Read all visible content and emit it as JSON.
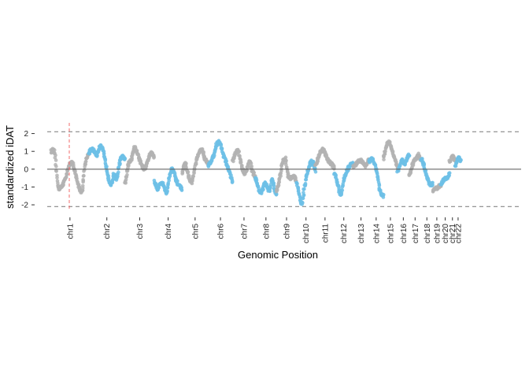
{
  "chart_data": {
    "type": "scatter",
    "xlabel": "Genomic Position",
    "ylabel": "standardized iDAT",
    "ylim": [
      -2.35,
      2.6
    ],
    "y_ticks": [
      -2,
      -1,
      0,
      1,
      2
    ],
    "threshold_lines": [
      2.1,
      -2.1
    ],
    "reference_line": 0,
    "highlight_position": 0.04,
    "grid": false,
    "colors": {
      "odd_chromosome": "#b3b3b3",
      "even_chromosome": "#6dc0e6",
      "threshold": "#888888",
      "reference": "#555555",
      "highlight": "#f26b6b"
    },
    "chromosomes": [
      {
        "name": "chr1",
        "start": 0.0,
        "end": 0.083,
        "profile": [
          1.0,
          0.9,
          -0.9,
          -1.0,
          -0.6,
          0.0,
          0.4,
          -0.2,
          -0.9,
          -1.2,
          0.3,
          0.9
        ]
      },
      {
        "name": "chr2",
        "start": 0.083,
        "end": 0.163,
        "profile": [
          0.9,
          1.1,
          1.0,
          0.8,
          1.3,
          1.1,
          0.4,
          -0.4,
          -0.9,
          -0.3,
          -0.5,
          0.3,
          0.7,
          0.5
        ]
      },
      {
        "name": "chr3",
        "start": 0.163,
        "end": 0.228,
        "profile": [
          -0.8,
          0.2,
          0.6,
          1.2,
          0.8,
          0.3,
          0.0,
          0.5,
          0.9,
          0.7
        ]
      },
      {
        "name": "chr4",
        "start": 0.228,
        "end": 0.289,
        "profile": [
          -0.7,
          -1.1,
          -0.8,
          -0.9,
          -1.3,
          -0.4,
          0.0,
          -0.6,
          -0.9,
          -1.1
        ]
      },
      {
        "name": "chr5",
        "start": 0.289,
        "end": 0.347,
        "profile": [
          -0.2,
          0.3,
          -0.4,
          -0.7,
          0.2,
          0.8,
          1.1,
          0.6,
          0.3
        ]
      },
      {
        "name": "chr6",
        "start": 0.347,
        "end": 0.401,
        "profile": [
          0.2,
          0.5,
          0.9,
          1.5,
          1.4,
          0.8,
          0.3,
          -0.2,
          -0.7
        ]
      },
      {
        "name": "chr7",
        "start": 0.401,
        "end": 0.451,
        "profile": [
          0.5,
          0.9,
          1.0,
          0.3,
          -0.2,
          0.0,
          0.4,
          -0.1,
          -0.4
        ]
      },
      {
        "name": "chr8",
        "start": 0.451,
        "end": 0.498,
        "profile": [
          -0.5,
          -0.9,
          -1.3,
          -1.2,
          -0.8,
          -1.0,
          -1.2,
          -0.6,
          -1.1,
          -1.4
        ]
      },
      {
        "name": "chr9",
        "start": 0.498,
        "end": 0.542,
        "profile": [
          -1.2,
          -0.6,
          0.3,
          0.6,
          -0.3,
          -0.5,
          -0.4,
          -0.6
        ]
      },
      {
        "name": "chr10",
        "start": 0.542,
        "end": 0.584,
        "profile": [
          -0.8,
          -1.4,
          -1.9,
          -0.9,
          -0.2,
          0.3,
          0.4,
          -0.1
        ]
      },
      {
        "name": "chr11",
        "start": 0.584,
        "end": 0.626,
        "profile": [
          0.2,
          0.7,
          1.1,
          0.9,
          0.5,
          0.3,
          0.1
        ]
      },
      {
        "name": "chr12",
        "start": 0.626,
        "end": 0.667,
        "profile": [
          -0.3,
          -0.8,
          -1.4,
          -0.6,
          -0.1,
          0.2,
          0.3
        ]
      },
      {
        "name": "chr13",
        "start": 0.667,
        "end": 0.702,
        "profile": [
          0.1,
          0.3,
          0.5,
          0.4,
          0.2,
          0.5
        ]
      },
      {
        "name": "chr14",
        "start": 0.702,
        "end": 0.734,
        "profile": [
          0.4,
          0.6,
          0.3,
          -0.4,
          -1.3,
          -1.5
        ]
      },
      {
        "name": "chr15",
        "start": 0.734,
        "end": 0.765,
        "profile": [
          0.6,
          1.2,
          1.5,
          1.1,
          0.6,
          0.1
        ]
      },
      {
        "name": "chr16",
        "start": 0.765,
        "end": 0.791,
        "profile": [
          -0.1,
          0.2,
          0.5,
          0.3,
          0.6,
          0.8
        ]
      },
      {
        "name": "chr17",
        "start": 0.791,
        "end": 0.817,
        "profile": [
          -0.3,
          0.1,
          0.4,
          0.6,
          0.8,
          0.5
        ]
      },
      {
        "name": "chr18",
        "start": 0.817,
        "end": 0.843,
        "profile": [
          0.6,
          0.3,
          -0.2,
          -0.6,
          -0.9,
          -0.8
        ]
      },
      {
        "name": "chr19",
        "start": 0.843,
        "end": 0.861,
        "profile": [
          -1.2,
          -1.1,
          -1.0,
          -0.9
        ]
      },
      {
        "name": "chr20",
        "start": 0.861,
        "end": 0.88,
        "profile": [
          -0.8,
          -0.6,
          -0.5,
          -0.3
        ]
      },
      {
        "name": "chr21",
        "start": 0.88,
        "end": 0.893,
        "profile": [
          0.4,
          0.7,
          0.5
        ]
      },
      {
        "name": "chr22",
        "start": 0.893,
        "end": 0.905,
        "profile": [
          0.2,
          0.6,
          0.5
        ]
      }
    ]
  }
}
